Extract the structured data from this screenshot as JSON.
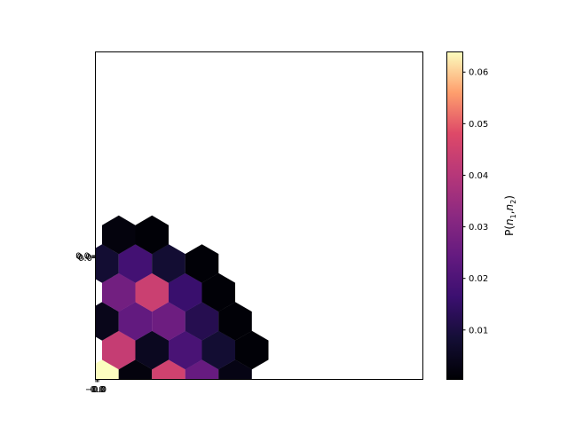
{
  "chart_data": {
    "type": "heatmap",
    "subtype": "hexbin",
    "title": "",
    "xlabel": "",
    "ylabel": "",
    "grid": false,
    "colormap": "magma",
    "hex_cells": [
      {
        "col": 0,
        "row": 0,
        "value": 0.064
      },
      {
        "col": 1,
        "row": 0,
        "value": 0.002
      },
      {
        "col": 2,
        "row": 0,
        "value": 0.045
      },
      {
        "col": 3,
        "row": 0,
        "value": 0.025
      },
      {
        "col": 4,
        "row": 0,
        "value": 0.003
      },
      {
        "col": 0,
        "row": 1,
        "value": 0.043
      },
      {
        "col": 1,
        "row": 1,
        "value": 0.005
      },
      {
        "col": 2,
        "row": 1,
        "value": 0.019
      },
      {
        "col": 3,
        "row": 1,
        "value": 0.008
      },
      {
        "col": 4,
        "row": 1,
        "value": 0.001
      },
      {
        "col": 0,
        "row": 2,
        "value": 0.004
      },
      {
        "col": 1,
        "row": 2,
        "value": 0.024
      },
      {
        "col": 2,
        "row": 2,
        "value": 0.026
      },
      {
        "col": 3,
        "row": 2,
        "value": 0.012
      },
      {
        "col": 4,
        "row": 2,
        "value": 0.001
      },
      {
        "col": 0,
        "row": 3,
        "value": 0.027
      },
      {
        "col": 1,
        "row": 3,
        "value": 0.044
      },
      {
        "col": 2,
        "row": 3,
        "value": 0.016
      },
      {
        "col": 3,
        "row": 3,
        "value": 0.001
      },
      {
        "col": 0,
        "row": 4,
        "value": 0.008
      },
      {
        "col": 1,
        "row": 4,
        "value": 0.018
      },
      {
        "col": 2,
        "row": 4,
        "value": 0.008
      },
      {
        "col": 3,
        "row": 4,
        "value": 0.001
      },
      {
        "col": 0,
        "row": 5,
        "value": 0.002
      },
      {
        "col": 1,
        "row": 5,
        "value": 0.001
      }
    ],
    "x_tick_labels_overlapping": [
      "−0.0",
      "0.0",
      "0.0"
    ],
    "y_tick_labels_overlapping": [
      "0.0",
      "0.0",
      "0.0"
    ],
    "colorbar": {
      "label_text": "P(",
      "label_var1": "n",
      "label_sub1": "1",
      "label_sep": ",",
      "label_var2": "n",
      "label_sub2": "2",
      "label_close": ")",
      "vmin": 0.0005,
      "vmax": 0.064,
      "ticks": [
        {
          "value": 0.01,
          "label": "0.01"
        },
        {
          "value": 0.02,
          "label": "0.02"
        },
        {
          "value": 0.03,
          "label": "0.03"
        },
        {
          "value": 0.04,
          "label": "0.04"
        },
        {
          "value": 0.05,
          "label": "0.05"
        },
        {
          "value": 0.06,
          "label": "0.06"
        }
      ]
    }
  }
}
